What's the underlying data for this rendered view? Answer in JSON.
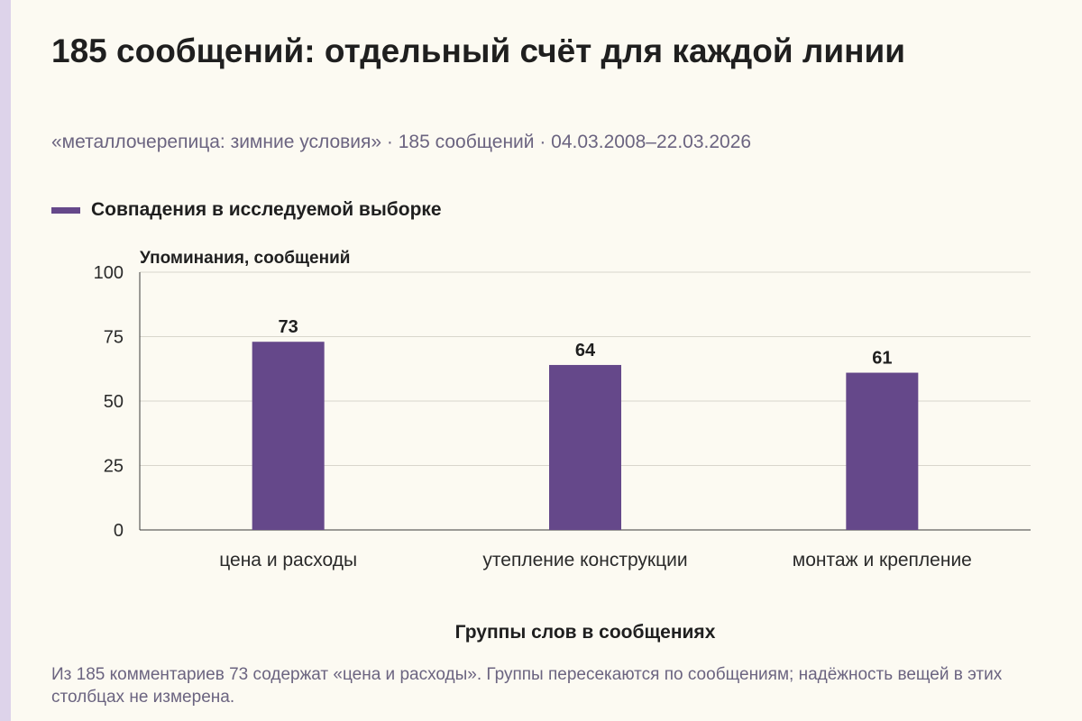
{
  "title": "185 сообщений: отдельный счёт для каждой линии",
  "subtitle": "«металлочерепица: зимние условия» · 185 сообщений · 04.03.2008–22.03.2026",
  "legend_label": "Совпадения в исследуемой выборке",
  "footnote": "Из 185 комментариев 73 содержат «цена и расходы». Группы пересекаются по сообщениям; надёжность вещей в этих столбцах не измерена.",
  "colors": {
    "bar": "#65488a",
    "accent_strip": "#ddd3ea",
    "background": "#fcfaf2"
  },
  "chart_data": {
    "type": "bar",
    "title": "185 сообщений: отдельный счёт для каждой линии",
    "categories": [
      "цена и расходы",
      "утепление конструкции",
      "монтаж и крепление"
    ],
    "series": [
      {
        "name": "Совпадения в исследуемой выборке",
        "values": [
          73,
          64,
          61
        ]
      }
    ],
    "xlabel": "Группы слов в сообщениях",
    "ylabel": "Упоминания, сообщений",
    "ylim": [
      0,
      100
    ],
    "yticks": [
      0,
      25,
      50,
      75,
      100
    ],
    "grid": true,
    "legend_position": "top-left"
  }
}
